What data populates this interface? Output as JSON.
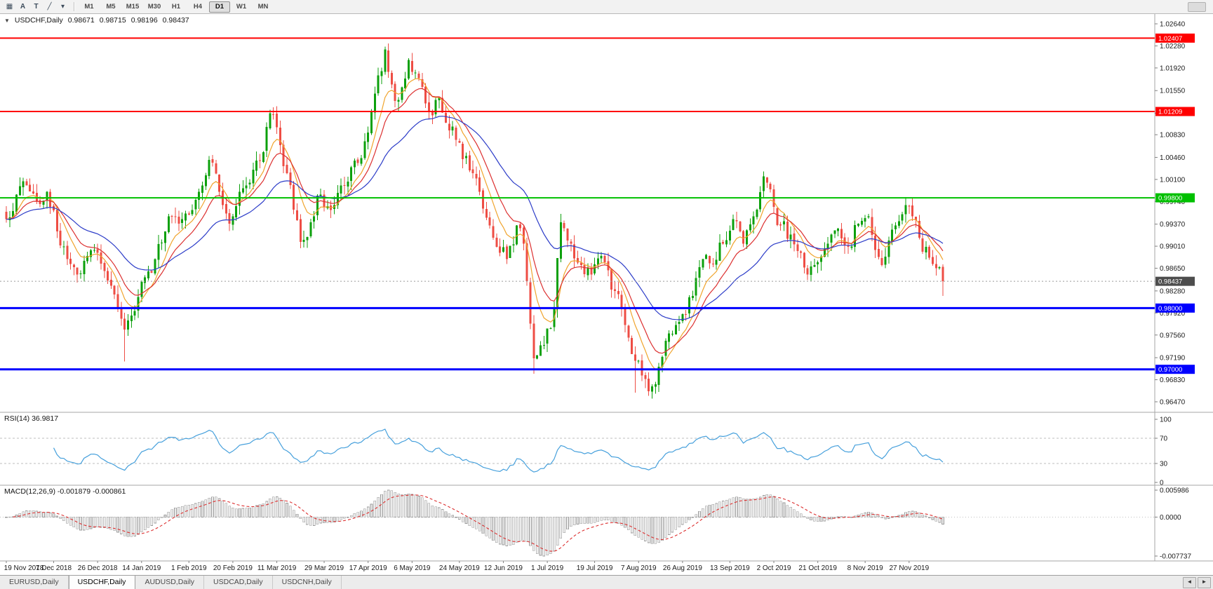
{
  "toolbar": {
    "icons": [
      {
        "name": "grid-icon",
        "glyph": "▦"
      },
      {
        "name": "letter-a-tool-icon",
        "glyph": "A"
      },
      {
        "name": "text-tool-icon",
        "glyph": "T"
      },
      {
        "name": "trendline-tool-icon",
        "glyph": "╱"
      },
      {
        "name": "tools-dropdown-caret-icon",
        "glyph": "▾"
      }
    ],
    "timeframes": [
      "M1",
      "M5",
      "M15",
      "M30",
      "H1",
      "H4",
      "D1",
      "W1",
      "MN"
    ],
    "active_timeframe": "D1"
  },
  "chart": {
    "symbol_marker": "▼",
    "title": "USDCHF,Daily",
    "open": "0.98671",
    "high": "0.98715",
    "low": "0.98196",
    "close": "0.98437"
  },
  "chart_data": {
    "type": "candlestick",
    "symbol": "USDCHF",
    "timeframe": "Daily",
    "price_axis": {
      "top": 1.0264,
      "bottom": 0.9647,
      "labels": [
        "1.02640",
        "1.02280",
        "1.01920",
        "1.01550",
        "1.01180",
        "1.00830",
        "1.00460",
        "1.00100",
        "0.99740",
        "0.99370",
        "0.99010",
        "0.98650",
        "0.98280",
        "0.97920",
        "0.97560",
        "0.97190",
        "0.96830",
        "0.96470"
      ]
    },
    "date_labels": [
      [
        0,
        "19 Nov 2018"
      ],
      [
        14,
        "7 Dec 2018"
      ],
      [
        27,
        "26 Dec 2018"
      ],
      [
        40,
        "14 Jan 2019"
      ],
      [
        54,
        "1 Feb 2019"
      ],
      [
        67,
        "20 Feb 2019"
      ],
      [
        80,
        "11 Mar 2019"
      ],
      [
        94,
        "29 Mar 2019"
      ],
      [
        107,
        "17 Apr 2019"
      ],
      [
        120,
        "6 May 2019"
      ],
      [
        134,
        "24 May 2019"
      ],
      [
        147,
        "12 Jun 2019"
      ],
      [
        160,
        "1 Jul 2019"
      ],
      [
        174,
        "19 Jul 2019"
      ],
      [
        187,
        "7 Aug 2019"
      ],
      [
        200,
        "26 Aug 2019"
      ],
      [
        214,
        "13 Sep 2019"
      ],
      [
        227,
        "2 Oct 2019"
      ],
      [
        240,
        "21 Oct 2019"
      ],
      [
        254,
        "8 Nov 2019"
      ],
      [
        267,
        "27 Nov 2019"
      ]
    ],
    "candles": {
      "count": 278,
      "up_color": "#0ca00c",
      "down_color": "#ee4d44",
      "close_anchors": [
        [
          0,
          0.9945
        ],
        [
          3,
          0.9985
        ],
        [
          6,
          1.0
        ],
        [
          9,
          0.9975
        ],
        [
          12,
          0.999
        ],
        [
          15,
          0.9925
        ],
        [
          18,
          0.988
        ],
        [
          21,
          0.9855
        ],
        [
          24,
          0.9885
        ],
        [
          27,
          0.989
        ],
        [
          30,
          0.9845
        ],
        [
          33,
          0.98
        ],
        [
          35,
          0.9765
        ],
        [
          38,
          0.9795
        ],
        [
          41,
          0.985
        ],
        [
          44,
          0.988
        ],
        [
          47,
          0.9925
        ],
        [
          49,
          0.995
        ],
        [
          52,
          0.9945
        ],
        [
          55,
          0.996
        ],
        [
          58,
          1.0
        ],
        [
          60,
          1.0042
        ],
        [
          63,
          0.999
        ],
        [
          66,
          0.9938
        ],
        [
          69,
          0.999
        ],
        [
          72,
          1.0005
        ],
        [
          75,
          1.004
        ],
        [
          78,
          1.0118
        ],
        [
          80,
          1.0095
        ],
        [
          83,
          1.002
        ],
        [
          87,
          0.9908
        ],
        [
          90,
          0.994
        ],
        [
          93,
          0.9985
        ],
        [
          96,
          0.996
        ],
        [
          99,
          1.0
        ],
        [
          102,
          1.003
        ],
        [
          105,
          1.0045
        ],
        [
          108,
          1.012
        ],
        [
          110,
          1.018
        ],
        [
          112,
          1.0222
        ],
        [
          114,
          1.0165
        ],
        [
          116,
          1.014
        ],
        [
          119,
          1.0205
        ],
        [
          122,
          1.0175
        ],
        [
          125,
          1.012
        ],
        [
          128,
          1.0145
        ],
        [
          131,
          1.009
        ],
        [
          134,
          1.007
        ],
        [
          137,
          1.0025
        ],
        [
          140,
          0.999
        ],
        [
          143,
          0.9935
        ],
        [
          145,
          0.99
        ],
        [
          148,
          0.988
        ],
        [
          151,
          0.9935
        ],
        [
          153,
          0.9905
        ],
        [
          156,
          0.9718
        ],
        [
          159,
          0.974
        ],
        [
          162,
          0.98
        ],
        [
          164,
          0.994
        ],
        [
          167,
          0.9905
        ],
        [
          170,
          0.987
        ],
        [
          173,
          0.9855
        ],
        [
          176,
          0.9885
        ],
        [
          179,
          0.983
        ],
        [
          182,
          0.98
        ],
        [
          185,
          0.9725
        ],
        [
          188,
          0.969
        ],
        [
          191,
          0.9672
        ],
        [
          194,
          0.972
        ],
        [
          197,
          0.9758
        ],
        [
          200,
          0.979
        ],
        [
          203,
          0.982
        ],
        [
          206,
          0.988
        ],
        [
          209,
          0.9872
        ],
        [
          212,
          0.9905
        ],
        [
          215,
          0.9945
        ],
        [
          218,
          0.9905
        ],
        [
          221,
          0.995
        ],
        [
          224,
          1.0015
        ],
        [
          227,
          0.9965
        ],
        [
          229,
          0.9935
        ],
        [
          232,
          0.992
        ],
        [
          235,
          0.989
        ],
        [
          237,
          0.9855
        ],
        [
          240,
          0.9875
        ],
        [
          243,
          0.9905
        ],
        [
          246,
          0.993
        ],
        [
          249,
          0.99
        ],
        [
          252,
          0.9938
        ],
        [
          255,
          0.995
        ],
        [
          257,
          0.9895
        ],
        [
          259,
          0.987
        ],
        [
          261,
          0.991
        ],
        [
          263,
          0.9935
        ],
        [
          266,
          0.9968
        ],
        [
          268,
          0.995
        ],
        [
          270,
          0.9915
        ],
        [
          272,
          0.99
        ],
        [
          274,
          0.9872
        ],
        [
          276,
          0.9867
        ],
        [
          277,
          0.98437
        ]
      ],
      "overrides": [
        {
          "i": 35,
          "low": 0.9713
        },
        {
          "i": 60,
          "high": 1.0048
        },
        {
          "i": 78,
          "high": 1.0124
        },
        {
          "i": 112,
          "high": 1.0227
        },
        {
          "i": 156,
          "low": 0.9693
        },
        {
          "i": 186,
          "low": 0.9662
        },
        {
          "i": 191,
          "low": 0.9652
        },
        {
          "i": 266,
          "high": 0.9981
        },
        {
          "i": 277,
          "open": 0.98671,
          "high": 0.98715,
          "low": 0.98196,
          "close": 0.98437
        }
      ]
    },
    "moving_averages": [
      {
        "name": "ma-fast-line",
        "period": 8,
        "color": "#f0a42d"
      },
      {
        "name": "ma-medium-line",
        "period": 14,
        "color": "#dc2f2f"
      },
      {
        "name": "ma-slow-line",
        "period": 34,
        "color": "#2c3cc8"
      }
    ],
    "hlines": [
      {
        "price": 1.02407,
        "label": "1.02407",
        "color": "#ff0000",
        "width": 2
      },
      {
        "price": 1.01209,
        "label": "1.01209",
        "color": "#ff0000",
        "width": 2
      },
      {
        "price": 0.998,
        "label": "0.99800",
        "color": "#00c000",
        "width": 2
      },
      {
        "price": 0.98,
        "label": "0.98000",
        "color": "#0000ff",
        "width": 3
      },
      {
        "price": 0.97,
        "label": "0.97000",
        "color": "#0000ff",
        "width": 3
      }
    ],
    "current_price": {
      "value": 0.98437,
      "label": "0.98437",
      "badge_color": "#4d4d4d"
    },
    "rsi": {
      "label": "RSI(14) 36.9817",
      "period": 14,
      "color": "#46a0dc",
      "levels": [
        100,
        70,
        30,
        0
      ]
    },
    "macd": {
      "label": "MACD(12,26,9) -0.001879 -0.000861",
      "axis_labels": [
        "0.005986",
        "0.0000",
        "-0.007737"
      ],
      "hist_fill": "#ececec",
      "hist_stroke": "#9a9a9a",
      "signal_color": "#dc2f2f"
    }
  },
  "tabs": {
    "items": [
      "EURUSD,Daily",
      "USDCHF,Daily",
      "AUDUSD,Daily",
      "USDCAD,Daily",
      "USDCNH,Daily"
    ],
    "active_index": 1,
    "scroll_left": "◄",
    "scroll_right": "►"
  }
}
